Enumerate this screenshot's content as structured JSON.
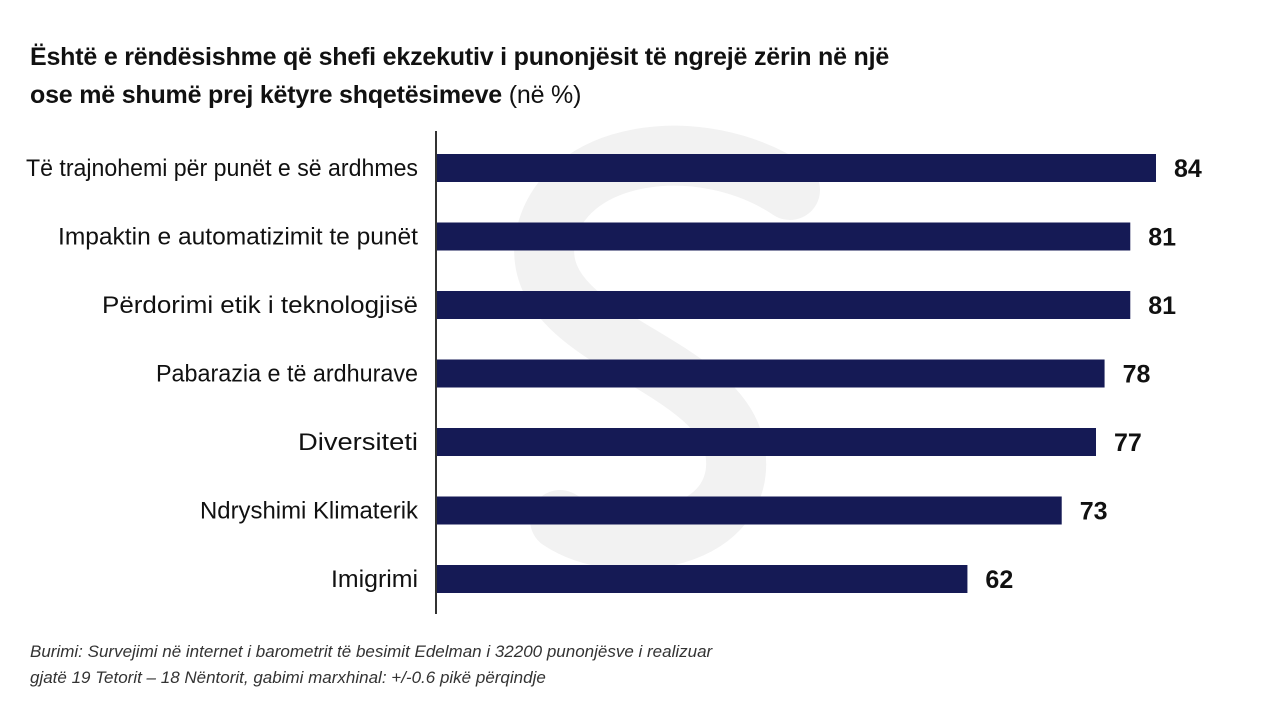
{
  "title": {
    "line1": "Është e rëndësishme që shefi ekzekutiv i punonjësit të ngrejë zërin në një",
    "line2": "ose më shumë prej këtyre shqetësimeve",
    "unit": "(në %)"
  },
  "source": {
    "line1": "Burimi: Survejimi në internet i barometrit të besimit Edelman i 32200 punonjësve i realizuar",
    "line2": "gjatë 19 Tetorit – 18 Nëntorit, gabimi marxhinal: +/-0.6 pikë përqindje"
  },
  "colors": {
    "bar": "#151a55",
    "axis": "#333333",
    "label": "#111111",
    "watermark": "#f2f2f2"
  },
  "chart_data": {
    "type": "bar",
    "orientation": "horizontal",
    "title": "Është e rëndësishme që shefi ekzekutiv i punonjësit të ngrejë zërin në një ose më shumë prej këtyre shqetësimeve (në %)",
    "categories": [
      "Të trajnohemi për punët e së ardhmes",
      "Impaktin e automatizimit te punët",
      "Përdorimi etik i teknologjisë",
      "Pabarazia e të ardhurave",
      "Diversiteti",
      "Ndryshimi Klimaterik",
      "Imigrimi"
    ],
    "values": [
      84,
      81,
      81,
      78,
      77,
      73,
      62
    ],
    "xlim": [
      0,
      84
    ],
    "grid": false,
    "legend": "none"
  }
}
